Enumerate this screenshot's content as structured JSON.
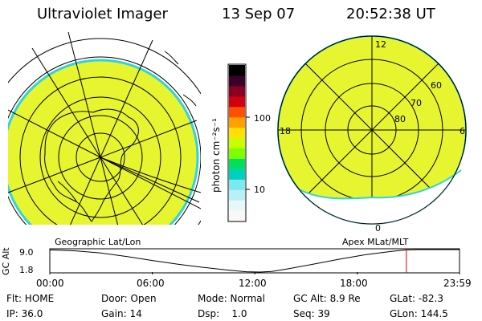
{
  "header": {
    "instrument": "Ultraviolet Imager",
    "date": "13 Sep 07",
    "time": "20:52:38 UT"
  },
  "colorbar": {
    "unit_label": "photon cm⁻²s⁻¹",
    "tick_labels": [
      "100",
      "10"
    ],
    "colors": [
      "#000000",
      "#3a0028",
      "#8a0020",
      "#d00010",
      "#ff5000",
      "#ffa000",
      "#ffe000",
      "#c8ff00",
      "#7cff00",
      "#00e060",
      "#00d0c0",
      "#7ee8f0",
      "#b8f0f8",
      "#e8f8f8",
      "#f8f8f8"
    ]
  },
  "geo_panel": {
    "caption": "Geographic Lat/Lon",
    "fill": "#e6f530"
  },
  "apex_panel": {
    "caption": "Apex MLat/MLT",
    "fill": "#e6f530",
    "mlt_labels": {
      "top": "12",
      "left": "18",
      "right": "6",
      "bottom": "0"
    },
    "lat_labels": [
      "60",
      "70",
      "80"
    ]
  },
  "altitude_plot": {
    "ylabel": "GC Alt",
    "y_ticks": [
      "9.0",
      "1.8"
    ],
    "x_ticks": [
      "00:00",
      "06:00",
      "12:00",
      "18:00",
      "23:59"
    ],
    "current_time_color": "#cc0000"
  },
  "chart_data": {
    "type": "line",
    "xlabel": "",
    "ylabel": "GC Alt",
    "xlim_hours": [
      0,
      23.98
    ],
    "ylim": [
      1.8,
      9.0
    ],
    "x_hours": [
      0,
      1.5,
      3,
      4.5,
      6,
      7.5,
      9,
      10.5,
      11.5,
      12.3,
      13,
      14,
      15.5,
      17,
      18.5,
      20,
      20.87,
      21.5,
      22.5,
      23.98
    ],
    "y": [
      8.9,
      8.6,
      7.9,
      6.8,
      5.5,
      4.3,
      3.3,
      2.4,
      1.9,
      1.8,
      2.0,
      2.9,
      4.4,
      6.0,
      7.4,
      8.4,
      8.9,
      9.0,
      9.0,
      9.0
    ],
    "current_time_hours": 20.87
  },
  "status": {
    "flt": "Flt: HOME",
    "ip": "IP: 36.0",
    "door": "Door: Open",
    "gain": "Gain: 14",
    "mode": "Mode: Normal",
    "dsp": "Dsp:    1.0",
    "gcalt": "GC Alt: 8.9 Re",
    "seq": "Seq: 39",
    "glat": "GLat: -82.3",
    "glon": "GLon: 144.5"
  }
}
